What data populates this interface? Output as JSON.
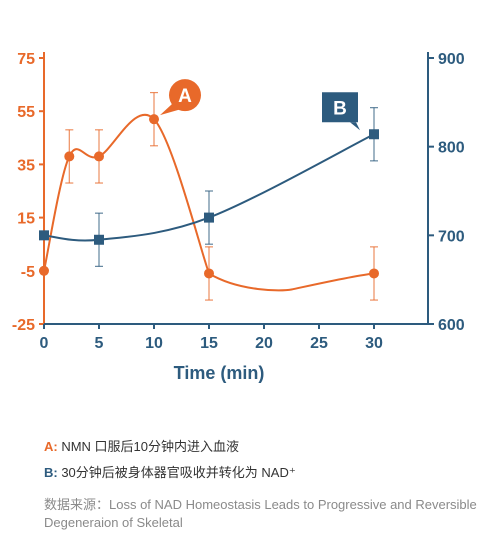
{
  "chart_data": {
    "type": "line",
    "title": "",
    "xlabel": "Time (min)",
    "x_ticks": [
      "0",
      "5",
      "10",
      "15",
      "20",
      "25",
      "30"
    ],
    "xlim": [
      0,
      30
    ],
    "y_left": {
      "ylim": [
        -25,
        75
      ],
      "ticks": [
        "75",
        "55",
        "35",
        "15",
        "-5",
        "-25"
      ],
      "color": "#e8692a"
    },
    "y_right": {
      "ylim": [
        600,
        900
      ],
      "ticks": [
        "900",
        "800",
        "700",
        "600"
      ],
      "color": "#2d5b7e"
    },
    "grid": false,
    "series": [
      {
        "axis": "left",
        "color": "#e8692a",
        "marker": "circle",
        "callout": "A",
        "points": [
          {
            "x": 0,
            "y": -5,
            "err": 0
          },
          {
            "x": 2.3,
            "y": 38,
            "err": 10
          },
          {
            "x": 5,
            "y": 38,
            "err": 10
          },
          {
            "x": 10,
            "y": 52,
            "err": 10
          },
          {
            "x": 15,
            "y": -6,
            "err": 10
          },
          {
            "x": 30,
            "y": -6,
            "err": 10
          }
        ]
      },
      {
        "axis": "right",
        "color": "#2d5b7e",
        "marker": "square",
        "callout": "B",
        "points": [
          {
            "x": 0,
            "y": 700,
            "err": 0
          },
          {
            "x": 5,
            "y": 695,
            "err": 30
          },
          {
            "x": 15,
            "y": 720,
            "err": 30
          },
          {
            "x": 30,
            "y": 814,
            "err": 30
          }
        ]
      }
    ]
  },
  "legend": {
    "a_key": "A:",
    "a_text": " NMN 口服后10分钟内进入血液",
    "b_key": "B:",
    "b_text": " 30分钟后被身体器官吸收并转化为 NAD⁺"
  },
  "source": {
    "text": "数据来源：Loss of NAD Homeostasis Leads to Progressive and Reversible Degeneraion of Skeletal"
  }
}
